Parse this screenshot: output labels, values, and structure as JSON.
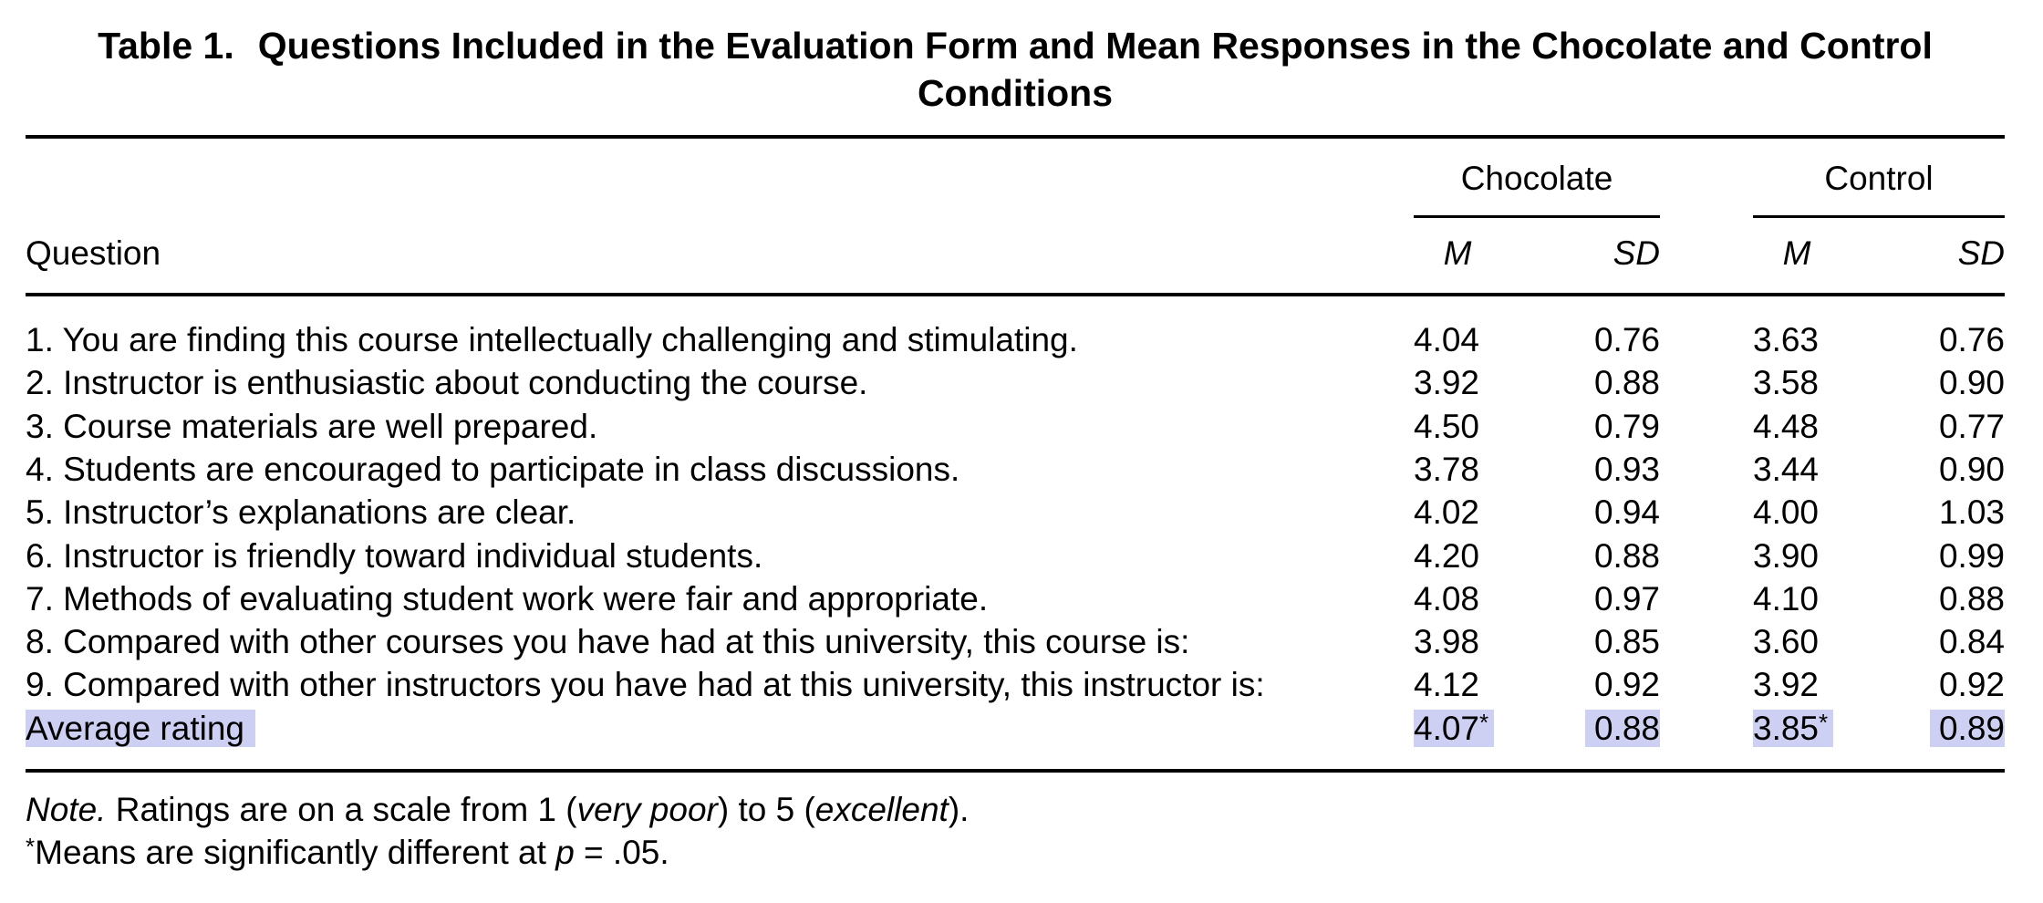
{
  "title": {
    "label": "Table 1.",
    "text": "Questions Included in the Evaluation Form and Mean Responses in the Chocolate and Control Conditions"
  },
  "headers": {
    "question": "Question",
    "chocolate": "Chocolate",
    "control": "Control",
    "mean": "M",
    "sd": "SD"
  },
  "rows": [
    {
      "question": "1. You are finding this course intellectually challenging and stimulating.",
      "choc_m": "4.04",
      "choc_sd": "0.76",
      "ctrl_m": "3.63",
      "ctrl_sd": "0.76"
    },
    {
      "question": "2. Instructor is enthusiastic about conducting the course.",
      "choc_m": "3.92",
      "choc_sd": "0.88",
      "ctrl_m": "3.58",
      "ctrl_sd": "0.90"
    },
    {
      "question": "3. Course materials are well prepared.",
      "choc_m": "4.50",
      "choc_sd": "0.79",
      "ctrl_m": "4.48",
      "ctrl_sd": "0.77"
    },
    {
      "question": "4. Students are encouraged to participate in class discussions.",
      "choc_m": "3.78",
      "choc_sd": "0.93",
      "ctrl_m": "3.44",
      "ctrl_sd": "0.90"
    },
    {
      "question": "5. Instructor’s explanations are clear.",
      "choc_m": "4.02",
      "choc_sd": "0.94",
      "ctrl_m": "4.00",
      "ctrl_sd": "1.03"
    },
    {
      "question": "6. Instructor is friendly toward individual students.",
      "choc_m": "4.20",
      "choc_sd": "0.88",
      "ctrl_m": "3.90",
      "ctrl_sd": "0.99"
    },
    {
      "question": "7. Methods of evaluating student work were fair and appropriate.",
      "choc_m": "4.08",
      "choc_sd": "0.97",
      "ctrl_m": "4.10",
      "ctrl_sd": "0.88"
    },
    {
      "question": "8. Compared with other courses you have had at this university, this course is:",
      "choc_m": "3.98",
      "choc_sd": "0.85",
      "ctrl_m": "3.60",
      "ctrl_sd": "0.84"
    },
    {
      "question": "9. Compared with other instructors you have had at this university, this instructor is:",
      "choc_m": "4.12",
      "choc_sd": "0.92",
      "ctrl_m": "3.92",
      "ctrl_sd": "0.92"
    }
  ],
  "average": {
    "label": "Average rating",
    "choc_m": "4.07",
    "choc_sd": "0.88",
    "ctrl_m": "3.85",
    "ctrl_sd": "0.89",
    "sig_marker": "*"
  },
  "note": {
    "lead": "Note.",
    "text_1": " Ratings are on a scale from 1 (",
    "low": "very poor",
    "text_2": ") to 5 (",
    "high": "excellent",
    "text_3": ")."
  },
  "footnote": {
    "marker": "*",
    "text": "Means are significantly different at ",
    "p": "p",
    "eq": " = .05."
  },
  "colors": {
    "highlight": "#cdd0f2",
    "text": "#000000"
  }
}
